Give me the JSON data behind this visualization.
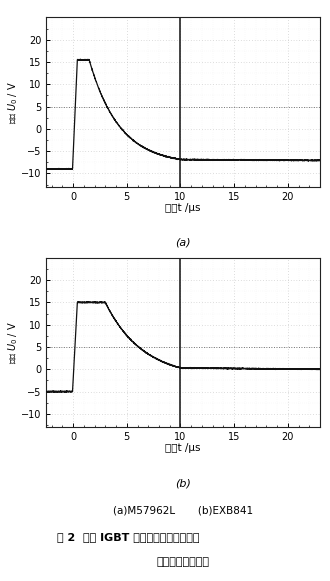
{
  "fig_width": 3.3,
  "fig_height": 5.81,
  "dpi": 100,
  "xlim": [
    -2.5,
    23
  ],
  "xticks": [
    0,
    5,
    10,
    15,
    20
  ],
  "ylim": [
    -13,
    25
  ],
  "yticks": [
    -10,
    -5,
    0,
    5,
    10,
    15,
    20
  ],
  "vline_x": 10,
  "hline_y": 5,
  "bg_color": "#ffffff",
  "line_color": "#111111",
  "grid_major_color": "#aaaaaa",
  "grid_minor_color": "#cccccc",
  "vline_color": "#222222",
  "xlabel_a": "时间t /μs",
  "xlabel_b": "时间t /μs",
  "ylabel": "电压 $U_0$ / V",
  "label_a": "(a)",
  "label_b": "(b)",
  "caption_line1": "(a)M57962L       (b)EXB841",
  "caption_line2": "图 2  两种 IGBT 栋极驱动模块短路保护",
  "caption_line3": "情况下的输出波形"
}
